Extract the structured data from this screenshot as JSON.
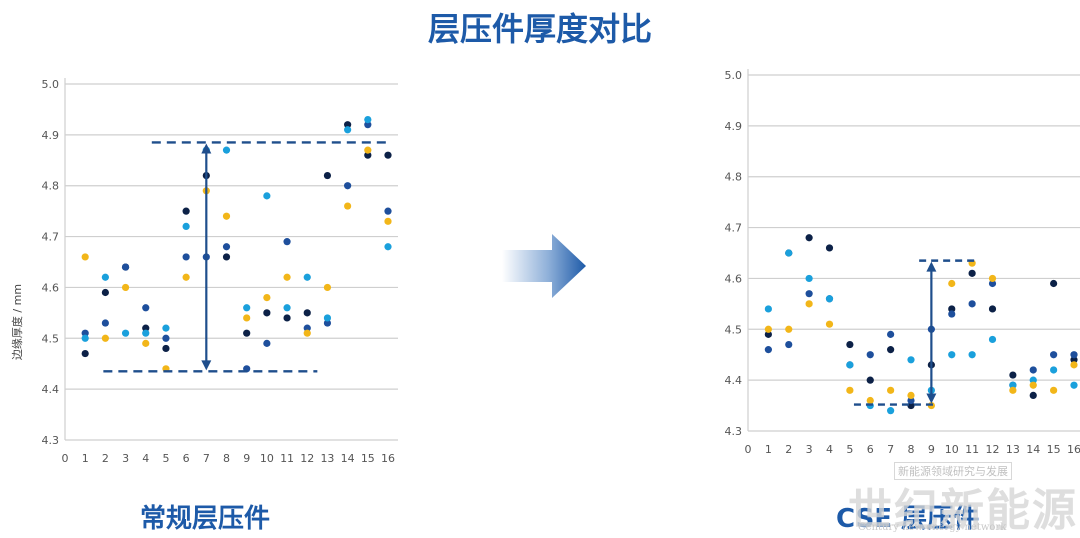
{
  "title": "层压件厚度对比",
  "captions": {
    "left": "常规层压件",
    "right": "CSE 层压件"
  },
  "watermark": {
    "cn": "世纪新能源网",
    "en": "Century new energy network",
    "boxed": "新能源领域研究与发展"
  },
  "colors": {
    "accent": "#1d5aa8",
    "grid": "#cfcfcf",
    "guide": "#1f4e8c",
    "series": [
      "#0c2147",
      "#1e4f9c",
      "#1aa0dc",
      "#f2b619"
    ]
  },
  "chart_data": [
    {
      "type": "scatter",
      "ylabel": "边缘厚度 / mm",
      "xlim": [
        0,
        16
      ],
      "ylim": [
        4.3,
        5.0
      ],
      "xticks": [
        "0",
        "1",
        "2",
        "3",
        "4",
        "5",
        "6",
        "7",
        "8",
        "9",
        "10",
        "11",
        "12",
        "13",
        "14",
        "15",
        "16"
      ],
      "yticks": [
        "4.3",
        "4.4",
        "4.5",
        "4.6",
        "4.7",
        "4.8",
        "4.9",
        "5.0"
      ],
      "range_lines": [
        4.885,
        4.435
      ],
      "range_arrow_x": 7,
      "series": [
        {
          "x": [
            1,
            2,
            3,
            4,
            5,
            6,
            7,
            8,
            9,
            10,
            11,
            12,
            13,
            14,
            15,
            16
          ],
          "y": [
            4.47,
            4.59,
            4.64,
            4.52,
            4.48,
            4.75,
            4.82,
            4.66,
            4.51,
            4.55,
            4.54,
            4.55,
            4.82,
            4.92,
            4.86,
            4.86
          ]
        },
        {
          "x": [
            1,
            2,
            3,
            4,
            5,
            6,
            7,
            8,
            9,
            10,
            11,
            12,
            13,
            14,
            15,
            16
          ],
          "y": [
            4.51,
            4.53,
            4.64,
            4.56,
            4.5,
            4.66,
            4.66,
            4.68,
            4.44,
            4.49,
            4.69,
            4.52,
            4.53,
            4.8,
            4.92,
            4.75
          ]
        },
        {
          "x": [
            1,
            2,
            3,
            4,
            5,
            6,
            7,
            8,
            9,
            10,
            11,
            12,
            13,
            14,
            15,
            16
          ],
          "y": [
            4.5,
            4.62,
            4.51,
            4.51,
            4.52,
            4.72,
            4.87,
            4.87,
            4.56,
            4.78,
            4.56,
            4.62,
            4.54,
            4.91,
            4.93,
            4.68
          ]
        },
        {
          "x": [
            1,
            2,
            3,
            4,
            5,
            6,
            7,
            8,
            9,
            10,
            11,
            12,
            13,
            14,
            15,
            16
          ],
          "y": [
            4.66,
            4.5,
            4.6,
            4.49,
            4.44,
            4.62,
            4.79,
            4.74,
            4.54,
            4.58,
            4.62,
            4.51,
            4.6,
            4.76,
            4.87,
            4.73
          ]
        }
      ]
    },
    {
      "type": "scatter",
      "ylabel": "",
      "xlim": [
        0,
        16
      ],
      "ylim": [
        4.3,
        5.0
      ],
      "xticks": [
        "0",
        "1",
        "2",
        "3",
        "4",
        "5",
        "6",
        "7",
        "8",
        "9",
        "10",
        "11",
        "12",
        "13",
        "14",
        "15",
        "16"
      ],
      "yticks": [
        "4.3",
        "4.4",
        "4.5",
        "4.6",
        "4.7",
        "4.8",
        "4.9",
        "5.0"
      ],
      "range_lines": [
        4.635,
        4.352
      ],
      "range_arrow_x": 9,
      "series": [
        {
          "x": [
            1,
            2,
            3,
            4,
            5,
            6,
            7,
            8,
            9,
            10,
            11,
            12,
            13,
            14,
            15,
            16
          ],
          "y": [
            4.49,
            4.65,
            4.68,
            4.66,
            4.47,
            4.4,
            4.46,
            4.35,
            4.43,
            4.54,
            4.61,
            4.54,
            4.41,
            4.37,
            4.59,
            4.44
          ]
        },
        {
          "x": [
            1,
            2,
            3,
            4,
            5,
            6,
            7,
            8,
            9,
            10,
            11,
            12,
            13,
            14,
            15,
            16
          ],
          "y": [
            4.46,
            4.47,
            4.57,
            4.56,
            4.43,
            4.45,
            4.49,
            4.36,
            4.5,
            4.53,
            4.55,
            4.59,
            4.39,
            4.42,
            4.45,
            4.45
          ]
        },
        {
          "x": [
            1,
            2,
            3,
            4,
            5,
            6,
            7,
            8,
            9,
            10,
            11,
            12,
            13,
            14,
            15,
            16
          ],
          "y": [
            4.54,
            4.65,
            4.6,
            4.56,
            4.43,
            4.35,
            4.34,
            4.44,
            4.38,
            4.45,
            4.45,
            4.48,
            4.39,
            4.4,
            4.42,
            4.39
          ]
        },
        {
          "x": [
            1,
            2,
            3,
            4,
            5,
            6,
            7,
            8,
            9,
            10,
            11,
            12,
            13,
            14,
            15,
            16
          ],
          "y": [
            4.5,
            4.5,
            4.55,
            4.51,
            4.38,
            4.36,
            4.38,
            4.37,
            4.35,
            4.59,
            4.63,
            4.6,
            4.38,
            4.39,
            4.38,
            4.43
          ]
        }
      ]
    }
  ]
}
